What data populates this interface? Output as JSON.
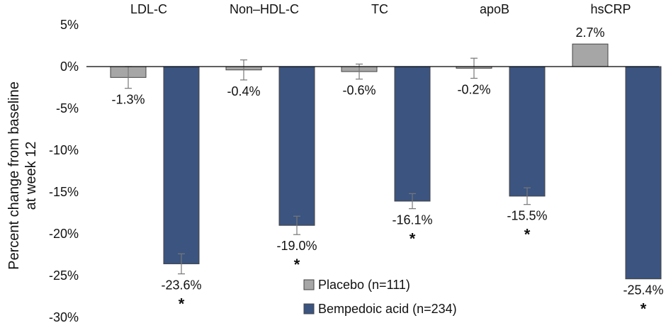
{
  "chart_data": {
    "type": "bar",
    "categories": [
      "LDL-C",
      "Non–HDL-C",
      "TC",
      "apoB",
      "hsCRP"
    ],
    "ylabel_lines": [
      "Percent change from baseline",
      "at week 12"
    ],
    "ylim": [
      -30,
      5
    ],
    "yticks": [
      5,
      0,
      -5,
      -10,
      -15,
      -20,
      -25,
      -30
    ],
    "ytick_labels": [
      "5%",
      "0%",
      "-5%",
      "-10%",
      "-15%",
      "-20%",
      "-25%",
      "-30%"
    ],
    "grid": false,
    "legend_position": "bottom-center",
    "series": [
      {
        "name": "Placebo (n=111)",
        "color": "#a6a6a6",
        "values": [
          -1.3,
          -0.4,
          -0.6,
          -0.2,
          2.7
        ],
        "labels": [
          "-1.3%",
          "-0.4%",
          "-0.6%",
          "-0.2%",
          "2.7%"
        ],
        "err": [
          1.3,
          1.2,
          0.9,
          1.2,
          null
        ]
      },
      {
        "name": "Bempedoic acid (n=234)",
        "color": "#3b5480",
        "values": [
          -23.6,
          -19.0,
          -16.1,
          -15.5,
          -25.4
        ],
        "labels": [
          "-23.6%",
          "-19.0%",
          "-16.1%",
          "-15.5%",
          "-25.4%"
        ],
        "err": [
          1.2,
          1.1,
          0.9,
          1.0,
          null
        ],
        "significance": [
          "*",
          "*",
          "*",
          "*",
          "*"
        ]
      }
    ]
  }
}
